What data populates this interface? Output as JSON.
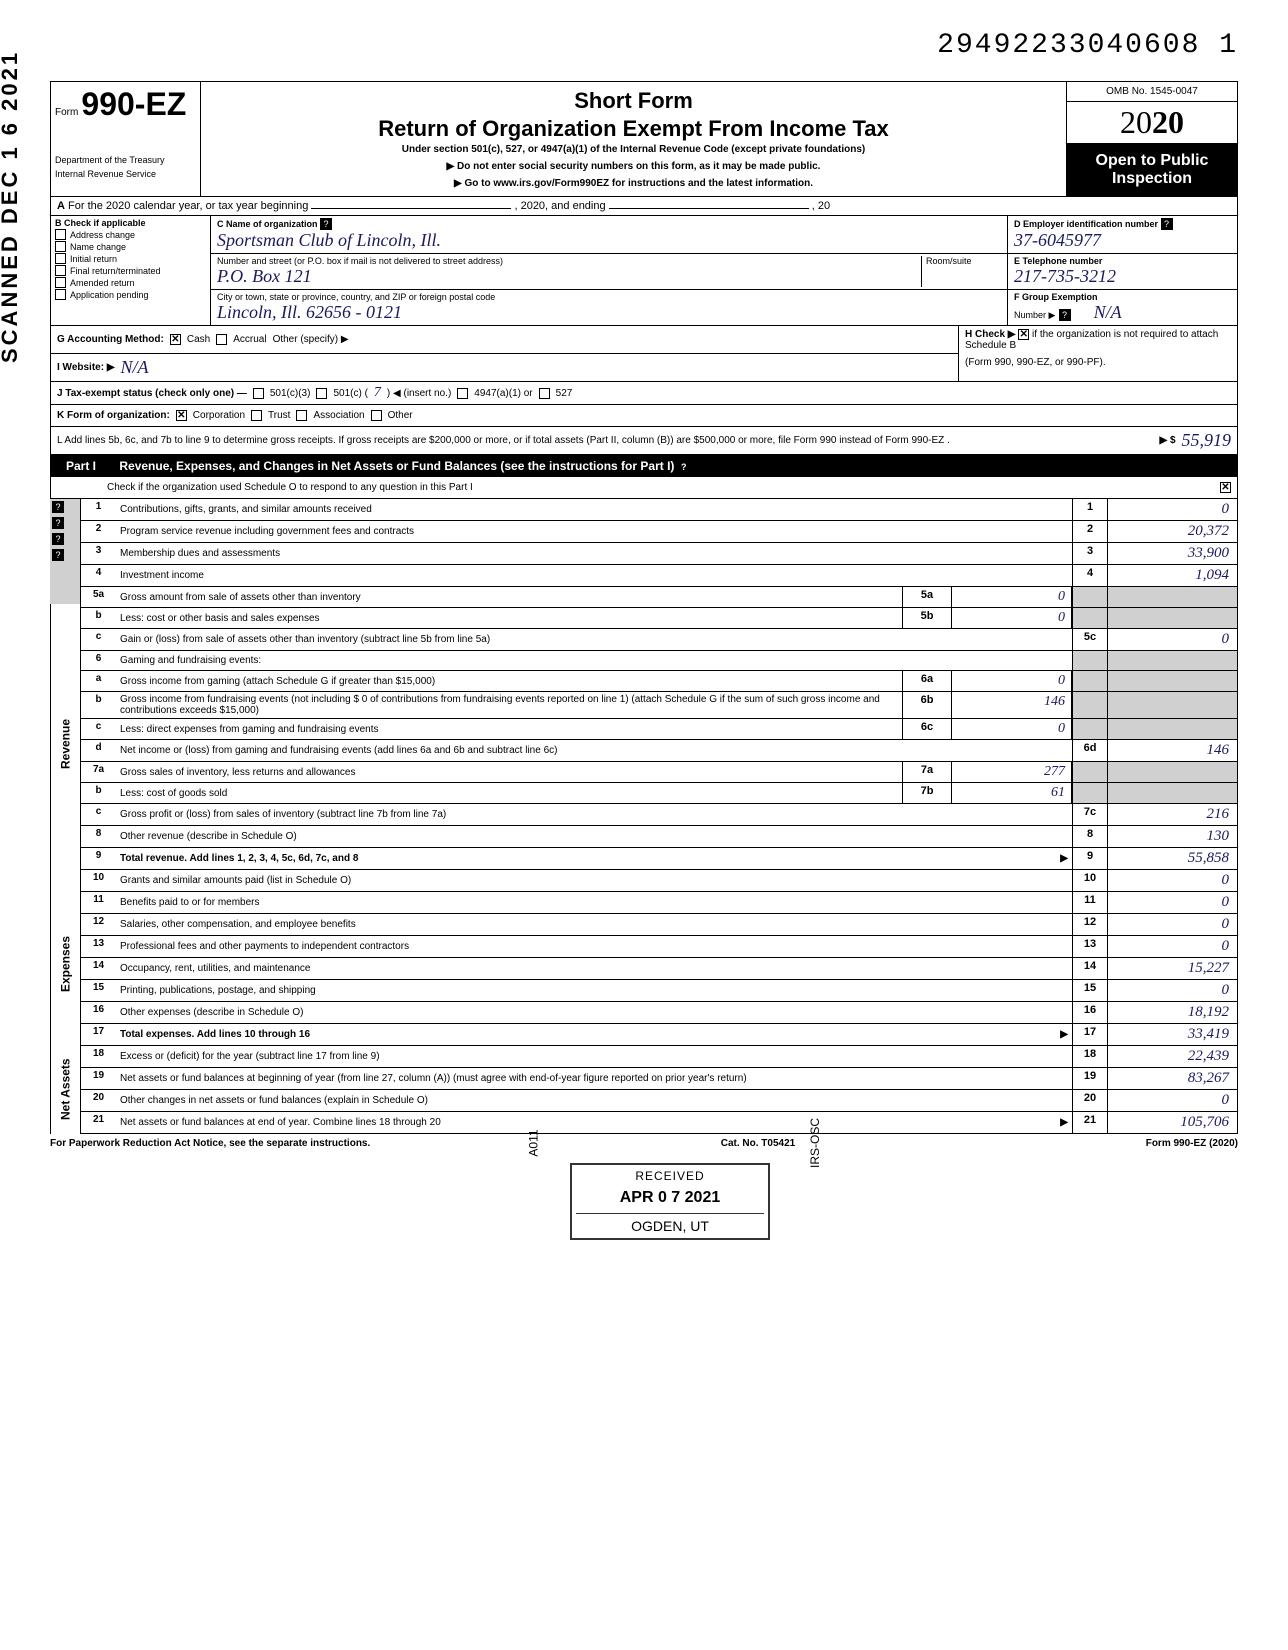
{
  "top_id": "29492233040608 1",
  "scanned_stamp": "SCANNED DEC 1 6 2021",
  "header": {
    "form_prefix": "Form",
    "form_number": "990-EZ",
    "short_form": "Short Form",
    "title": "Return of Organization Exempt From Income Tax",
    "subtitle": "Under section 501(c), 527, or 4947(a)(1) of the Internal Revenue Code (except private foundations)",
    "note1": "▶ Do not enter social security numbers on this form, as it may be made public.",
    "note2": "▶ Go to www.irs.gov/Form990EZ for instructions and the latest information.",
    "dept1": "Department of the Treasury",
    "dept2": "Internal Revenue Service",
    "omb": "OMB No. 1545-0047",
    "year_prefix": "20",
    "year_bold": "20",
    "open1": "Open to Public",
    "open2": "Inspection"
  },
  "section_a": {
    "label_a": "A",
    "text": "For the 2020 calendar year, or tax year beginning",
    "mid": ", 2020, and ending",
    "end": ", 20"
  },
  "section_b": {
    "header": "B Check if applicable",
    "items": [
      "Address change",
      "Name change",
      "Initial return",
      "Final return/terminated",
      "Amended return",
      "Application pending"
    ]
  },
  "section_c": {
    "label": "C Name of organization",
    "name": "Sportsman Club of Lincoln, Ill.",
    "addr_label": "Number and street (or P.O. box if mail is not delivered to street address)",
    "room_label": "Room/suite",
    "addr": "P.O. Box 121",
    "city_label": "City or town, state or province, country, and ZIP or foreign postal code",
    "city": "Lincoln, Ill. 62656 - 0121"
  },
  "section_d": {
    "label": "D Employer identification number",
    "value": "37-6045977",
    "e_label": "E Telephone number",
    "e_value": "217-735-3212",
    "f_label": "F Group Exemption",
    "f_label2": "Number ▶",
    "f_value": "N/A"
  },
  "line_g": {
    "label": "G Accounting Method:",
    "cash": "Cash",
    "accrual": "Accrual",
    "other": "Other (specify) ▶"
  },
  "line_h": {
    "label": "H Check ▶",
    "text": "if the organization is not required to attach Schedule B",
    "text2": "(Form 990, 990-EZ, or 990-PF)."
  },
  "line_i": {
    "label": "I Website: ▶",
    "value": "N/A"
  },
  "line_j": {
    "label": "J Tax-exempt status (check only one) —",
    "opt1": "501(c)(3)",
    "opt2": "501(c) (",
    "opt2_val": "7",
    "opt2_end": ") ◀ (insert no.)",
    "opt3": "4947(a)(1) or",
    "opt4": "527"
  },
  "line_k": {
    "label": "K Form of organization:",
    "corp": "Corporation",
    "trust": "Trust",
    "assoc": "Association",
    "other": "Other"
  },
  "line_l": {
    "text": "L Add lines 5b, 6c, and 7b to line 9 to determine gross receipts. If gross receipts are $200,000 or more, or if total assets (Part II, column (B)) are $500,000 or more, file Form 990 instead of Form 990-EZ .",
    "arrow": "▶ $",
    "value": "55,919"
  },
  "part1": {
    "label": "Part I",
    "title": "Revenue, Expenses, and Changes in Net Assets or Fund Balances (see the instructions for Part I)",
    "check_text": "Check if the organization used Schedule O to respond to any question in this Part I"
  },
  "sections": {
    "revenue": "Revenue",
    "expenses": "Expenses",
    "netassets": "Net Assets"
  },
  "lines": [
    {
      "n": "1",
      "desc": "Contributions, gifts, grants, and similar amounts received",
      "fn": "1",
      "fv": "0"
    },
    {
      "n": "2",
      "desc": "Program service revenue including government fees and contracts",
      "fn": "2",
      "fv": "20,372"
    },
    {
      "n": "3",
      "desc": "Membership dues and assessments",
      "fn": "3",
      "fv": "33,900"
    },
    {
      "n": "4",
      "desc": "Investment income",
      "fn": "4",
      "fv": "1,094"
    },
    {
      "n": "5a",
      "desc": "Gross amount from sale of assets other than inventory",
      "sc": "5a",
      "sv": "0"
    },
    {
      "n": "b",
      "desc": "Less: cost or other basis and sales expenses",
      "sc": "5b",
      "sv": "0"
    },
    {
      "n": "c",
      "desc": "Gain or (loss) from sale of assets other than inventory (subtract line 5b from line 5a)",
      "fn": "5c",
      "fv": "0"
    },
    {
      "n": "6",
      "desc": "Gaming and fundraising events:"
    },
    {
      "n": "a",
      "desc": "Gross income from gaming (attach Schedule G if greater than $15,000)",
      "sc": "6a",
      "sv": "0"
    },
    {
      "n": "b",
      "desc": "Gross income from fundraising events (not including $      0      of contributions from fundraising events reported on line 1) (attach Schedule G if the sum of such gross income and contributions exceeds $15,000)",
      "sc": "6b",
      "sv": "146"
    },
    {
      "n": "c",
      "desc": "Less: direct expenses from gaming and fundraising events",
      "sc": "6c",
      "sv": "0"
    },
    {
      "n": "d",
      "desc": "Net income or (loss) from gaming and fundraising events (add lines 6a and 6b and subtract line 6c)",
      "fn": "6d",
      "fv": "146"
    },
    {
      "n": "7a",
      "desc": "Gross sales of inventory, less returns and allowances",
      "sc": "7a",
      "sv": "277"
    },
    {
      "n": "b",
      "desc": "Less: cost of goods sold",
      "sc": "7b",
      "sv": "61"
    },
    {
      "n": "c",
      "desc": "Gross profit or (loss) from sales of inventory (subtract line 7b from line 7a)",
      "fn": "7c",
      "fv": "216"
    },
    {
      "n": "8",
      "desc": "Other revenue (describe in Schedule O)",
      "fn": "8",
      "fv": "130"
    },
    {
      "n": "9",
      "desc": "Total revenue. Add lines 1, 2, 3, 4, 5c, 6d, 7c, and 8",
      "fn": "9",
      "fv": "55,858",
      "arrow": true,
      "bold": true
    },
    {
      "n": "10",
      "desc": "Grants and similar amounts paid (list in Schedule O)",
      "fn": "10",
      "fv": "0"
    },
    {
      "n": "11",
      "desc": "Benefits paid to or for members",
      "fn": "11",
      "fv": "0"
    },
    {
      "n": "12",
      "desc": "Salaries, other compensation, and employee benefits",
      "fn": "12",
      "fv": "0"
    },
    {
      "n": "13",
      "desc": "Professional fees and other payments to independent contractors",
      "fn": "13",
      "fv": "0"
    },
    {
      "n": "14",
      "desc": "Occupancy, rent, utilities, and maintenance",
      "fn": "14",
      "fv": "15,227"
    },
    {
      "n": "15",
      "desc": "Printing, publications, postage, and shipping",
      "fn": "15",
      "fv": "0"
    },
    {
      "n": "16",
      "desc": "Other expenses (describe in Schedule O)",
      "fn": "16",
      "fv": "18,192"
    },
    {
      "n": "17",
      "desc": "Total expenses. Add lines 10 through 16",
      "fn": "17",
      "fv": "33,419",
      "arrow": true,
      "bold": true
    },
    {
      "n": "18",
      "desc": "Excess or (deficit) for the year (subtract line 17 from line 9)",
      "fn": "18",
      "fv": "22,439"
    },
    {
      "n": "19",
      "desc": "Net assets or fund balances at beginning of year (from line 27, column (A)) (must agree with end-of-year figure reported on prior year's return)",
      "fn": "19",
      "fv": "83,267"
    },
    {
      "n": "20",
      "desc": "Other changes in net assets or fund balances (explain in Schedule O)",
      "fn": "20",
      "fv": "0"
    },
    {
      "n": "21",
      "desc": "Net assets or fund balances at end of year. Combine lines 18 through 20",
      "fn": "21",
      "fv": "105,706",
      "arrow": true
    }
  ],
  "footer": {
    "left": "For Paperwork Reduction Act Notice, see the separate instructions.",
    "mid": "Cat. No. T05421",
    "right": "Form 990-EZ (2020)"
  },
  "stamp": {
    "received": "RECEIVED",
    "a011": "A011",
    "date": "APR 0 7 2021",
    "loc": "OGDEN, UT",
    "irs": "IRS-OSC"
  }
}
